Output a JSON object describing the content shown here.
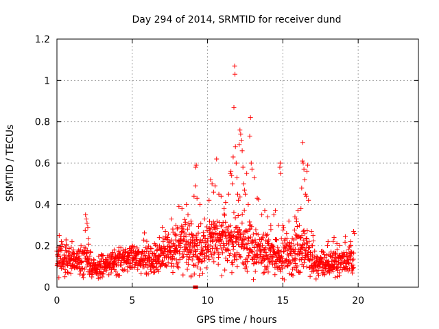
{
  "chart_data": {
    "type": "scatter",
    "title": "Day 294 of 2014, SRMTID for receiver dund",
    "xlabel": "GPS time / hours",
    "ylabel": "SRMTID / TECUs",
    "xlim": [
      0,
      24
    ],
    "ylim": [
      0,
      1.2
    ],
    "x_ticks": [
      0,
      5,
      10,
      15,
      20
    ],
    "x_tick_labels": [
      "0",
      "5",
      "10",
      "15",
      "20"
    ],
    "y_ticks": [
      0,
      0.2,
      0.4,
      0.6,
      0.8,
      1.0,
      1.2
    ],
    "y_tick_labels": [
      "0",
      "0.2",
      "0.4",
      "0.6",
      "0.8",
      "1",
      "1.2"
    ],
    "grid": true,
    "series": [
      {
        "name": "SRMTID",
        "color": "#ff0000",
        "marker": "plus",
        "envelope": [
          [
            0.0,
            0.14,
            0.06
          ],
          [
            0.5,
            0.14,
            0.06
          ],
          [
            1.0,
            0.13,
            0.06
          ],
          [
            1.5,
            0.14,
            0.07
          ],
          [
            2.0,
            0.13,
            0.07
          ],
          [
            2.5,
            0.1,
            0.04
          ],
          [
            3.0,
            0.1,
            0.04
          ],
          [
            3.5,
            0.11,
            0.04
          ],
          [
            4.0,
            0.13,
            0.05
          ],
          [
            4.5,
            0.13,
            0.05
          ],
          [
            5.0,
            0.14,
            0.05
          ],
          [
            5.5,
            0.14,
            0.05
          ],
          [
            6.0,
            0.12,
            0.06
          ],
          [
            6.5,
            0.13,
            0.06
          ],
          [
            7.0,
            0.16,
            0.07
          ],
          [
            7.5,
            0.18,
            0.08
          ],
          [
            8.0,
            0.19,
            0.09
          ],
          [
            8.5,
            0.2,
            0.09
          ],
          [
            9.0,
            0.2,
            0.09
          ],
          [
            9.5,
            0.19,
            0.09
          ],
          [
            10.0,
            0.21,
            0.1
          ],
          [
            10.5,
            0.22,
            0.11
          ],
          [
            11.0,
            0.21,
            0.11
          ],
          [
            11.5,
            0.22,
            0.12
          ],
          [
            12.0,
            0.23,
            0.12
          ],
          [
            12.5,
            0.21,
            0.11
          ],
          [
            13.0,
            0.19,
            0.1
          ],
          [
            13.5,
            0.17,
            0.09
          ],
          [
            14.0,
            0.16,
            0.08
          ],
          [
            14.5,
            0.16,
            0.08
          ],
          [
            15.0,
            0.16,
            0.08
          ],
          [
            15.5,
            0.15,
            0.08
          ],
          [
            16.0,
            0.18,
            0.09
          ],
          [
            16.5,
            0.18,
            0.09
          ],
          [
            17.0,
            0.12,
            0.06
          ],
          [
            17.5,
            0.11,
            0.05
          ],
          [
            18.0,
            0.11,
            0.05
          ],
          [
            18.5,
            0.12,
            0.05
          ],
          [
            19.0,
            0.13,
            0.06
          ],
          [
            19.5,
            0.14,
            0.06
          ],
          [
            19.7,
            0.14,
            0.06
          ]
        ],
        "spikes": [
          [
            0.15,
            0.25
          ],
          [
            0.3,
            0.22
          ],
          [
            1.0,
            0.22
          ],
          [
            1.6,
            0.2
          ],
          [
            1.9,
            0.35
          ],
          [
            1.95,
            0.33
          ],
          [
            2.0,
            0.31
          ],
          [
            2.05,
            0.29
          ],
          [
            3.8,
            0.18
          ],
          [
            4.1,
            0.17
          ],
          [
            5.0,
            0.2
          ],
          [
            6.8,
            0.24
          ],
          [
            7.0,
            0.29
          ],
          [
            7.2,
            0.27
          ],
          [
            7.6,
            0.33
          ],
          [
            7.9,
            0.3
          ],
          [
            8.1,
            0.39
          ],
          [
            8.3,
            0.38
          ],
          [
            8.6,
            0.4
          ],
          [
            8.7,
            0.35
          ],
          [
            8.9,
            0.32
          ],
          [
            9.1,
            0.44
          ],
          [
            9.2,
            0.49
          ],
          [
            9.22,
            0.58
          ],
          [
            9.25,
            0.59
          ],
          [
            9.3,
            0.43
          ],
          [
            9.5,
            0.4
          ],
          [
            9.8,
            0.33
          ],
          [
            10.1,
            0.42
          ],
          [
            10.2,
            0.52
          ],
          [
            10.3,
            0.5
          ],
          [
            10.4,
            0.46
          ],
          [
            10.5,
            0.49
          ],
          [
            10.6,
            0.62
          ],
          [
            10.75,
            0.45
          ],
          [
            10.9,
            0.44
          ],
          [
            11.1,
            0.38
          ],
          [
            11.2,
            0.41
          ],
          [
            11.4,
            0.45
          ],
          [
            11.5,
            0.55
          ],
          [
            11.55,
            0.56
          ],
          [
            11.6,
            0.54
          ],
          [
            11.65,
            0.5
          ],
          [
            11.7,
            0.63
          ],
          [
            11.75,
            0.87
          ],
          [
            11.8,
            1.07
          ],
          [
            11.82,
            1.03
          ],
          [
            11.85,
            0.68
          ],
          [
            11.9,
            0.6
          ],
          [
            11.95,
            0.53
          ],
          [
            12.0,
            0.45
          ],
          [
            12.05,
            0.42
          ],
          [
            12.1,
            0.69
          ],
          [
            12.15,
            0.76
          ],
          [
            12.2,
            0.74
          ],
          [
            12.25,
            0.71
          ],
          [
            12.3,
            0.66
          ],
          [
            12.35,
            0.58
          ],
          [
            12.4,
            0.5
          ],
          [
            12.45,
            0.47
          ],
          [
            12.5,
            0.45
          ],
          [
            12.6,
            0.55
          ],
          [
            12.7,
            0.4
          ],
          [
            12.8,
            0.73
          ],
          [
            12.85,
            0.82
          ],
          [
            12.9,
            0.6
          ],
          [
            12.95,
            0.57
          ],
          [
            13.1,
            0.53
          ],
          [
            13.3,
            0.43
          ],
          [
            13.6,
            0.35
          ],
          [
            13.8,
            0.37
          ],
          [
            14.0,
            0.34
          ],
          [
            14.2,
            0.3
          ],
          [
            14.4,
            0.35
          ],
          [
            14.5,
            0.37
          ],
          [
            14.7,
            0.3
          ],
          [
            14.8,
            0.58
          ],
          [
            14.82,
            0.6
          ],
          [
            14.85,
            0.55
          ],
          [
            15.0,
            0.3
          ],
          [
            15.4,
            0.32
          ],
          [
            15.8,
            0.34
          ],
          [
            15.9,
            0.33
          ],
          [
            16.0,
            0.37
          ],
          [
            16.1,
            0.3
          ],
          [
            16.2,
            0.38
          ],
          [
            16.25,
            0.48
          ],
          [
            16.3,
            0.61
          ],
          [
            16.32,
            0.7
          ],
          [
            16.35,
            0.6
          ],
          [
            16.4,
            0.57
          ],
          [
            16.45,
            0.52
          ],
          [
            16.5,
            0.45
          ],
          [
            16.55,
            0.44
          ],
          [
            16.6,
            0.56
          ],
          [
            16.65,
            0.59
          ],
          [
            16.7,
            0.42
          ],
          [
            16.9,
            0.27
          ],
          [
            17.0,
            0.25
          ],
          [
            18.0,
            0.22
          ],
          [
            18.4,
            0.24
          ],
          [
            19.5,
            0.22
          ],
          [
            19.7,
            0.27
          ],
          [
            19.75,
            0.26
          ],
          [
            8.9,
            0.05
          ]
        ],
        "zero_points": [
          [
            9.15,
            0.0
          ],
          [
            9.25,
            0.0
          ]
        ]
      }
    ]
  }
}
